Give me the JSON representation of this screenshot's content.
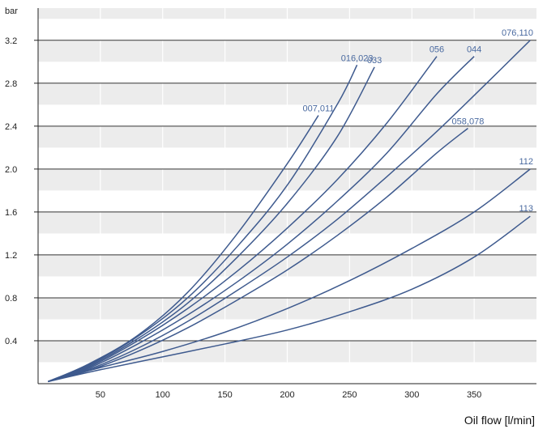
{
  "chart_data": {
    "type": "line",
    "title": "",
    "ylabel": "bar",
    "xlabel": "Oil flow [l/min]",
    "xlim": [
      0,
      400
    ],
    "ylim": [
      0,
      3.5
    ],
    "x_ticks": [
      50,
      100,
      150,
      200,
      250,
      300,
      350
    ],
    "y_ticks": [
      0.4,
      0.8,
      1.2,
      1.6,
      2.0,
      2.4,
      2.8,
      3.2
    ],
    "y_tick_labels": [
      "0.4",
      "0.8",
      "1.2",
      "1.6",
      "2.0",
      "2.4",
      "2.8",
      "3.2"
    ],
    "grid": true,
    "line_color": "#3e5a8e",
    "label_color": "#4a6aa0",
    "band_color": "#ececec",
    "series": [
      {
        "name": "007,011",
        "x": [
          8,
          40,
          80,
          120,
          160,
          200,
          225
        ],
        "y": [
          0.02,
          0.18,
          0.45,
          0.85,
          1.4,
          2.05,
          2.5
        ]
      },
      {
        "name": "016,023",
        "x": [
          8,
          40,
          80,
          120,
          160,
          200,
          240,
          256
        ],
        "y": [
          0.02,
          0.17,
          0.44,
          0.8,
          1.28,
          1.85,
          2.6,
          2.97
        ]
      },
      {
        "name": "033",
        "x": [
          8,
          40,
          80,
          120,
          160,
          200,
          240,
          270
        ],
        "y": [
          0.02,
          0.16,
          0.42,
          0.75,
          1.18,
          1.68,
          2.3,
          2.95
        ]
      },
      {
        "name": "056",
        "x": [
          8,
          40,
          80,
          120,
          160,
          200,
          240,
          280,
          320
        ],
        "y": [
          0.02,
          0.15,
          0.4,
          0.7,
          1.05,
          1.45,
          1.9,
          2.43,
          3.05
        ]
      },
      {
        "name": "044",
        "x": [
          8,
          40,
          80,
          120,
          160,
          200,
          240,
          280,
          320,
          350
        ],
        "y": [
          0.02,
          0.14,
          0.37,
          0.64,
          0.95,
          1.3,
          1.7,
          2.15,
          2.7,
          3.05
        ]
      },
      {
        "name": "058,078",
        "x": [
          8,
          40,
          80,
          120,
          160,
          200,
          240,
          280,
          320,
          345
        ],
        "y": [
          0.02,
          0.12,
          0.3,
          0.52,
          0.78,
          1.06,
          1.38,
          1.74,
          2.15,
          2.38
        ]
      },
      {
        "name": "076,110",
        "x": [
          8,
          40,
          80,
          120,
          160,
          200,
          240,
          280,
          320,
          360,
          395
        ],
        "y": [
          0.02,
          0.13,
          0.33,
          0.58,
          0.87,
          1.18,
          1.53,
          1.93,
          2.35,
          2.8,
          3.2
        ]
      },
      {
        "name": "112",
        "x": [
          8,
          50,
          100,
          150,
          200,
          250,
          300,
          350,
          395
        ],
        "y": [
          0.02,
          0.15,
          0.3,
          0.48,
          0.7,
          0.96,
          1.26,
          1.6,
          2.0
        ]
      },
      {
        "name": "113",
        "x": [
          8,
          50,
          100,
          150,
          200,
          250,
          300,
          350,
          395
        ],
        "y": [
          0.02,
          0.13,
          0.25,
          0.37,
          0.5,
          0.67,
          0.88,
          1.18,
          1.56
        ]
      }
    ]
  }
}
